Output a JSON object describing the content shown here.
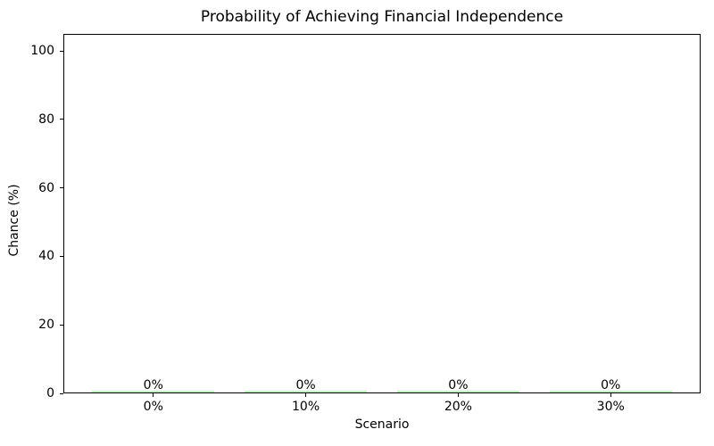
{
  "chart_data": {
    "type": "bar",
    "title": "Probability of Achieving Financial Independence",
    "xlabel": "Scenario",
    "ylabel": "Chance (%)",
    "categories": [
      "0%",
      "10%",
      "20%",
      "30%"
    ],
    "values": [
      0,
      0,
      0,
      0
    ],
    "value_labels": [
      "0%",
      "0%",
      "0%",
      "0%"
    ],
    "yticks": [
      0,
      20,
      40,
      60,
      80,
      100
    ],
    "ylim": [
      0,
      105
    ],
    "bar_color": "#90ee90",
    "axis_color": "#000000",
    "text_color": "#000000",
    "grid": false,
    "legend": null
  }
}
